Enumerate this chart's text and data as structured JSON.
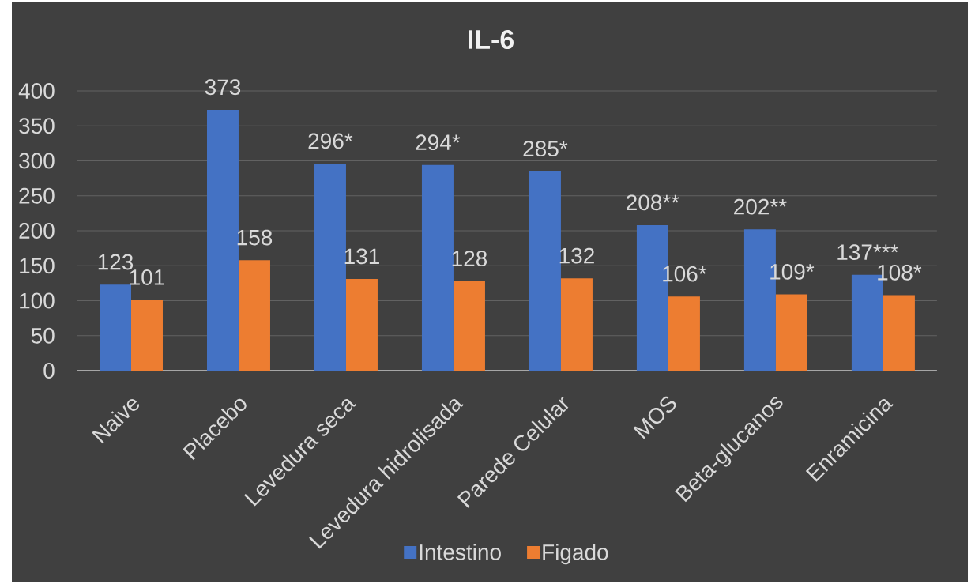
{
  "chart_data": {
    "type": "bar",
    "title": "IL-6",
    "categories": [
      "Naive",
      "Placebo",
      "Levedura seca",
      "Levedura hidrolisada",
      "Parede Celular",
      "MOS",
      "Beta-glucanos",
      "Enramicina"
    ],
    "series": [
      {
        "name": "Intestino",
        "color": "#4472c4",
        "values": [
          123,
          373,
          296,
          294,
          285,
          208,
          202,
          137
        ],
        "value_labels": [
          "123",
          "373",
          "296*",
          "294*",
          "285*",
          "208**",
          "202**",
          "137***"
        ]
      },
      {
        "name": "Figado",
        "color": "#ed7d31",
        "values": [
          101,
          158,
          131,
          128,
          132,
          106,
          109,
          108
        ],
        "value_labels": [
          "101",
          "158",
          "131",
          "128",
          "132",
          "106*",
          "109*",
          "108*"
        ]
      }
    ],
    "ylim": [
      0,
      400
    ],
    "yticks": [
      0,
      50,
      100,
      150,
      200,
      250,
      300,
      350,
      400
    ],
    "grid": "y",
    "legend": "bottom"
  }
}
